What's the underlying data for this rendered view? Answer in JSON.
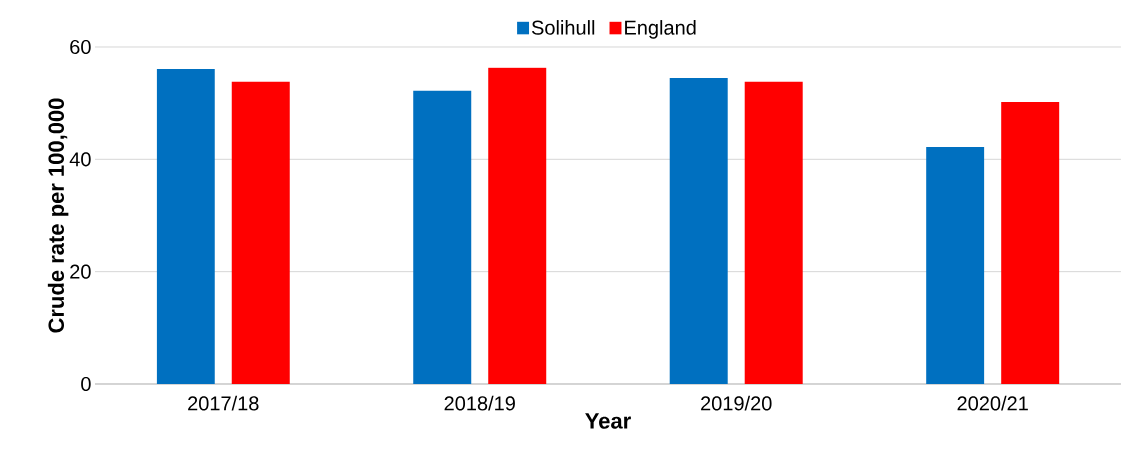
{
  "chart_data": {
    "type": "bar",
    "xlabel": "Year",
    "ylabel": "Crude rate per 100,000",
    "categories": [
      "2017/18",
      "2018/19",
      "2019/20",
      "2020/21"
    ],
    "series": [
      {
        "name": "Solihull",
        "color": "#0070c0",
        "values": [
          56.1,
          52.2,
          54.5,
          42.2
        ]
      },
      {
        "name": "England",
        "color": "#ff0000",
        "values": [
          53.8,
          56.3,
          53.8,
          50.2
        ]
      }
    ],
    "ylim": [
      0,
      60
    ],
    "yticks": [
      0,
      20,
      40,
      60
    ],
    "grid": "y",
    "legend": "top"
  }
}
